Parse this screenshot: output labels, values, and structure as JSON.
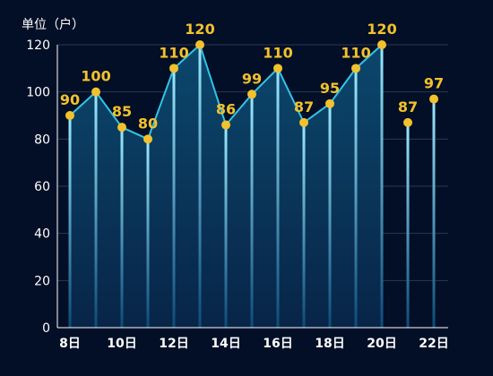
{
  "chart_data": {
    "type": "line",
    "unit_label": "单位（户）",
    "x_labels": [
      "8日",
      "9日",
      "10日",
      "11日",
      "12日",
      "13日",
      "14日",
      "15日",
      "16日",
      "17日",
      "18日",
      "19日",
      "20日",
      "21日",
      "22日"
    ],
    "x_tick_labels": [
      "8日",
      "10日",
      "12日",
      "14日",
      "16日",
      "18日",
      "20日",
      "22日"
    ],
    "values": [
      90,
      100,
      85,
      80,
      110,
      120,
      86,
      99,
      110,
      87,
      95,
      110,
      120,
      87,
      97
    ],
    "line_segment_end_index": 12,
    "ylim": [
      0,
      120
    ],
    "y_ticks": [
      0,
      20,
      40,
      60,
      80,
      100,
      120
    ],
    "grid": true,
    "colors": {
      "background": "#020f26",
      "line": "#33c3e6",
      "point": "#f2c12e",
      "label": "#f2c12e",
      "drop_line_top": "#9be9ff",
      "drop_line_bottom": "#0d4a78",
      "area_top": "#0c4a70",
      "area_bottom": "#08264a",
      "grid": "#2a3a52",
      "axis": "#ffffff",
      "text": "#ffffff"
    }
  }
}
